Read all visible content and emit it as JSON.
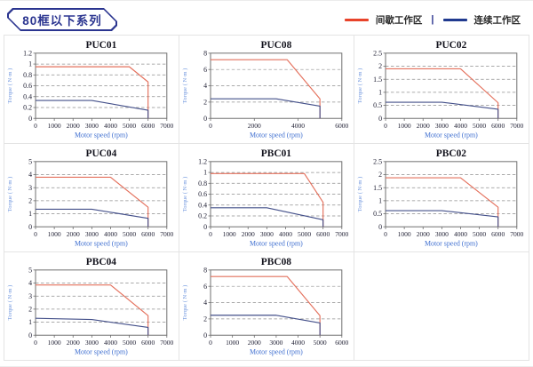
{
  "page": {
    "title": "80框以下系列"
  },
  "legend": {
    "intermittent_label": "间歇工作区",
    "continuous_label": "连续工作区",
    "separator": "|",
    "intermittent_color": "#e8432a",
    "continuous_color": "#203a8f"
  },
  "style": {
    "plot_red": "#e4705c",
    "plot_blue": "#44508a",
    "axis_box": "#6e6e6e",
    "grid_dash": "#8f8f8f",
    "tick_text": "#1e1e32",
    "title_text": "#14141e",
    "xlabel_text": "#3f6fd0",
    "ylabel_text": "#6b93dd"
  },
  "chart_data": [
    {
      "type": "line",
      "title": "PUC01",
      "xlabel": "Motor speed (rpm)",
      "ylabel": "Torque ( N·m )",
      "xlim": [
        0,
        7000
      ],
      "ylim": [
        0,
        1.2
      ],
      "xticks": [
        0,
        1000,
        2000,
        3000,
        4000,
        5000,
        6000,
        7000
      ],
      "yticks": [
        0,
        0.2,
        0.4,
        0.6,
        0.8,
        1,
        1.2
      ],
      "series": [
        {
          "name": "间歇工作区",
          "color": "#e4705c",
          "points": [
            [
              0,
              0.95
            ],
            [
              5000,
              0.95
            ],
            [
              6000,
              0.67
            ],
            [
              6000,
              0
            ]
          ]
        },
        {
          "name": "连续工作区",
          "color": "#44508a",
          "points": [
            [
              0,
              0.33
            ],
            [
              3000,
              0.33
            ],
            [
              6000,
              0.15
            ],
            [
              6000,
              0
            ]
          ]
        }
      ]
    },
    {
      "type": "line",
      "title": "PUC08",
      "xlabel": "Motor speed (rpm)",
      "ylabel": "Torque ( N·m )",
      "xlim": [
        0,
        6000
      ],
      "ylim": [
        0,
        8
      ],
      "xticks": [
        0,
        2000,
        4000,
        6000
      ],
      "yticks": [
        0,
        2,
        4,
        6,
        8
      ],
      "series": [
        {
          "name": "间歇工作区",
          "color": "#e4705c",
          "points": [
            [
              0,
              7.2
            ],
            [
              3500,
              7.2
            ],
            [
              5000,
              2.4
            ],
            [
              5000,
              0
            ]
          ]
        },
        {
          "name": "连续工作区",
          "color": "#44508a",
          "points": [
            [
              0,
              2.4
            ],
            [
              3000,
              2.4
            ],
            [
              5000,
              1.5
            ],
            [
              5000,
              0
            ]
          ]
        }
      ]
    },
    {
      "type": "line",
      "title": "PUC02",
      "xlabel": "Motor speed (rpm)",
      "ylabel": "Torque ( N·m )",
      "xlim": [
        0,
        7000
      ],
      "ylim": [
        0,
        2.5
      ],
      "xticks": [
        0,
        1000,
        2000,
        3000,
        4000,
        5000,
        6000,
        7000
      ],
      "yticks": [
        0,
        0.5,
        1,
        1.5,
        2,
        2.5
      ],
      "series": [
        {
          "name": "间歇工作区",
          "color": "#e4705c",
          "points": [
            [
              0,
              1.9
            ],
            [
              4000,
              1.9
            ],
            [
              6000,
              0.6
            ],
            [
              6000,
              0
            ]
          ]
        },
        {
          "name": "连续工作区",
          "color": "#44508a",
          "points": [
            [
              0,
              0.62
            ],
            [
              3000,
              0.62
            ],
            [
              6000,
              0.35
            ],
            [
              6000,
              0
            ]
          ]
        }
      ]
    },
    {
      "type": "line",
      "title": "PUC04",
      "xlabel": "Motor speed (rpm)",
      "ylabel": "Torque ( N·m )",
      "xlim": [
        0,
        7000
      ],
      "ylim": [
        0,
        5
      ],
      "xticks": [
        0,
        1000,
        2000,
        3000,
        4000,
        5000,
        6000,
        7000
      ],
      "yticks": [
        0,
        1,
        2,
        3,
        4,
        5
      ],
      "series": [
        {
          "name": "间歇工作区",
          "color": "#e4705c",
          "points": [
            [
              0,
              3.8
            ],
            [
              4000,
              3.8
            ],
            [
              6000,
              1.5
            ],
            [
              6000,
              0
            ]
          ]
        },
        {
          "name": "连续工作区",
          "color": "#44508a",
          "points": [
            [
              0,
              1.35
            ],
            [
              3000,
              1.35
            ],
            [
              6000,
              0.65
            ],
            [
              6000,
              0
            ]
          ]
        }
      ]
    },
    {
      "type": "line",
      "title": "PBC01",
      "xlabel": "Motor speed (rpm)",
      "ylabel": "Torque ( N·m )",
      "xlim": [
        0,
        7000
      ],
      "ylim": [
        0,
        1.2
      ],
      "xticks": [
        0,
        1000,
        2000,
        3000,
        4000,
        5000,
        6000,
        7000
      ],
      "yticks": [
        0,
        0.2,
        0.4,
        0.6,
        0.8,
        1,
        1.2
      ],
      "series": [
        {
          "name": "间歇工作区",
          "color": "#e4705c",
          "points": [
            [
              0,
              0.98
            ],
            [
              5000,
              0.98
            ],
            [
              6000,
              0.45
            ],
            [
              6000,
              0
            ]
          ]
        },
        {
          "name": "连续工作区",
          "color": "#44508a",
          "points": [
            [
              0,
              0.35
            ],
            [
              3000,
              0.35
            ],
            [
              6000,
              0.13
            ],
            [
              6000,
              0
            ]
          ]
        }
      ]
    },
    {
      "type": "line",
      "title": "PBC02",
      "xlabel": "Motor speed (rpm)",
      "ylabel": "Torque ( N·m )",
      "xlim": [
        0,
        7000
      ],
      "ylim": [
        0,
        2.5
      ],
      "xticks": [
        0,
        1000,
        2000,
        3000,
        4000,
        5000,
        6000,
        7000
      ],
      "yticks": [
        0,
        0.5,
        1,
        1.5,
        2,
        2.5
      ],
      "series": [
        {
          "name": "间歇工作区",
          "color": "#e4705c",
          "points": [
            [
              0,
              1.88
            ],
            [
              4000,
              1.88
            ],
            [
              6000,
              0.75
            ],
            [
              6000,
              0
            ]
          ]
        },
        {
          "name": "连续工作区",
          "color": "#44508a",
          "points": [
            [
              0,
              0.62
            ],
            [
              3000,
              0.62
            ],
            [
              6000,
              0.38
            ],
            [
              6000,
              0
            ]
          ]
        }
      ]
    },
    {
      "type": "line",
      "title": "PBC04",
      "xlabel": "Motor speed (rpm)",
      "ylabel": "Torque ( N·m )",
      "xlim": [
        0,
        7000
      ],
      "ylim": [
        0,
        5
      ],
      "xticks": [
        0,
        1000,
        2000,
        3000,
        4000,
        5000,
        6000,
        7000
      ],
      "yticks": [
        0,
        1,
        2,
        3,
        4,
        5
      ],
      "series": [
        {
          "name": "间歇工作区",
          "color": "#e4705c",
          "points": [
            [
              0,
              3.85
            ],
            [
              4000,
              3.85
            ],
            [
              6000,
              1.5
            ],
            [
              6000,
              0
            ]
          ]
        },
        {
          "name": "连续工作区",
          "color": "#44508a",
          "points": [
            [
              0,
              1.3
            ],
            [
              3000,
              1.2
            ],
            [
              6000,
              0.6
            ],
            [
              6000,
              0
            ]
          ]
        }
      ]
    },
    {
      "type": "line",
      "title": "PBC08",
      "xlabel": "Motor speed (rpm)",
      "ylabel": "Torque ( N·m )",
      "xlim": [
        0,
        6000
      ],
      "ylim": [
        0,
        8
      ],
      "xticks": [
        0,
        1000,
        2000,
        3000,
        4000,
        5000,
        6000
      ],
      "yticks": [
        0,
        2,
        4,
        6,
        8
      ],
      "series": [
        {
          "name": "间歇工作区",
          "color": "#e4705c",
          "points": [
            [
              0,
              7.2
            ],
            [
              3500,
              7.2
            ],
            [
              5000,
              2.4
            ],
            [
              5000,
              0
            ]
          ]
        },
        {
          "name": "连续工作区",
          "color": "#44508a",
          "points": [
            [
              0,
              2.45
            ],
            [
              3000,
              2.45
            ],
            [
              5000,
              1.5
            ],
            [
              5000,
              0
            ]
          ]
        }
      ]
    }
  ]
}
